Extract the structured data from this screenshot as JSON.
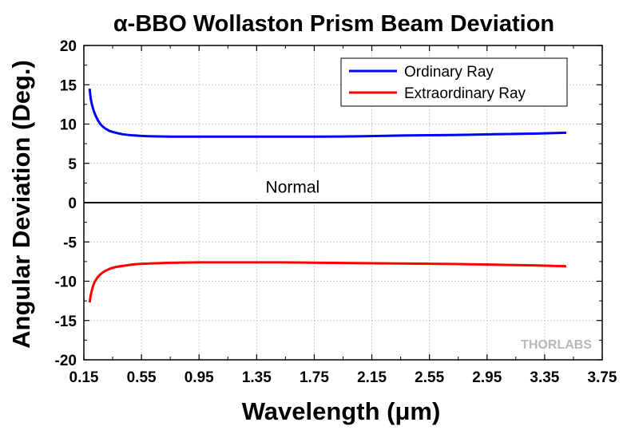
{
  "chart_data": {
    "type": "line",
    "title": "α-BBO Wollaston Prism Beam Deviation",
    "xlabel": "Wavelength (μm)",
    "ylabel": "Angular Deviation (Deg.)",
    "xlim": [
      0.15,
      3.75
    ],
    "ylim": [
      -20,
      20
    ],
    "x_ticks": [
      0.15,
      0.55,
      0.95,
      1.35,
      1.75,
      2.15,
      2.55,
      2.95,
      3.35,
      3.75
    ],
    "x_tick_labels": [
      "0.15",
      "0.55",
      "0.95",
      "1.35",
      "1.75",
      "2.15",
      "2.55",
      "2.95",
      "3.35",
      "3.75"
    ],
    "y_ticks": [
      -20,
      -15,
      -10,
      -5,
      0,
      5,
      10,
      15,
      20
    ],
    "y_tick_labels": [
      "-20",
      "-15",
      "-10",
      "-5",
      "0",
      "5",
      "10",
      "15",
      "20"
    ],
    "grid": true,
    "legend_position": "top-right",
    "series": [
      {
        "name": "Ordinary Ray",
        "color": "#0000ff",
        "x": [
          0.19,
          0.2,
          0.22,
          0.25,
          0.28,
          0.32,
          0.36,
          0.42,
          0.5,
          0.6,
          0.75,
          0.95,
          1.2,
          1.5,
          1.8,
          2.1,
          2.4,
          2.7,
          3.0,
          3.3,
          3.5
        ],
        "y": [
          14.5,
          13.0,
          11.6,
          10.4,
          9.7,
          9.2,
          8.95,
          8.7,
          8.55,
          8.45,
          8.4,
          8.4,
          8.4,
          8.4,
          8.4,
          8.45,
          8.55,
          8.6,
          8.7,
          8.8,
          8.9
        ]
      },
      {
        "name": "Extraordinary Ray",
        "color": "#ff0000",
        "x": [
          0.19,
          0.2,
          0.22,
          0.25,
          0.28,
          0.32,
          0.36,
          0.42,
          0.5,
          0.6,
          0.75,
          0.95,
          1.2,
          1.5,
          1.8,
          2.1,
          2.4,
          2.7,
          3.0,
          3.3,
          3.5
        ],
        "y": [
          -12.7,
          -11.6,
          -10.3,
          -9.4,
          -8.9,
          -8.5,
          -8.25,
          -8.05,
          -7.85,
          -7.75,
          -7.65,
          -7.6,
          -7.6,
          -7.6,
          -7.65,
          -7.7,
          -7.75,
          -7.8,
          -7.9,
          -8.0,
          -8.1
        ]
      }
    ],
    "annotations": [
      {
        "text": "Normal",
        "x": 1.6,
        "y": 2.0
      }
    ],
    "watermark": "THORLABS"
  }
}
